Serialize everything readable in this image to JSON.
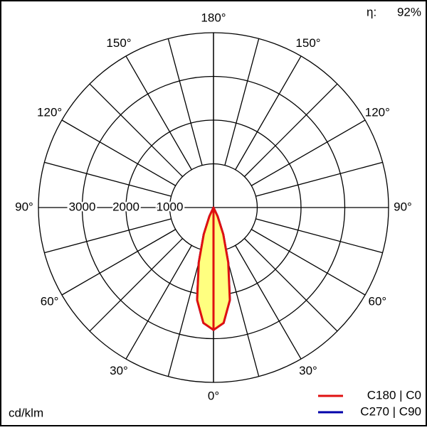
{
  "chart_data": {
    "type": "polar",
    "efficiency_label": "η:",
    "efficiency": "92%",
    "unit": "cd/klm",
    "rlim": [
      0,
      4000
    ],
    "rticks": [
      1000,
      2000,
      3000
    ],
    "xticks": [
      {
        "value": 0,
        "label": "0°"
      },
      {
        "value": 30,
        "label": "30°"
      },
      {
        "value": 60,
        "label": "60°"
      },
      {
        "value": 90,
        "label": "90°"
      },
      {
        "value": 120,
        "label": "120°"
      },
      {
        "value": 150,
        "label": "150°"
      },
      {
        "value": 180,
        "label": "180°"
      }
    ],
    "minor_xticks": [
      15,
      45,
      75,
      105,
      135,
      165
    ],
    "fill": "#ffff80",
    "x": [
      0,
      5,
      10,
      15,
      20,
      25,
      30,
      45,
      60,
      90,
      180
    ],
    "series": [
      {
        "name": "C270 | C90",
        "color": "#0000aa",
        "values": [
          2800,
          2650,
          2150,
          1300,
          650,
          220,
          0,
          0,
          0,
          0,
          0
        ]
      },
      {
        "name": "C180 | C0",
        "color": "#e01010",
        "values": [
          2800,
          2650,
          2150,
          1300,
          650,
          220,
          0,
          0,
          0,
          0,
          0
        ]
      }
    ]
  }
}
